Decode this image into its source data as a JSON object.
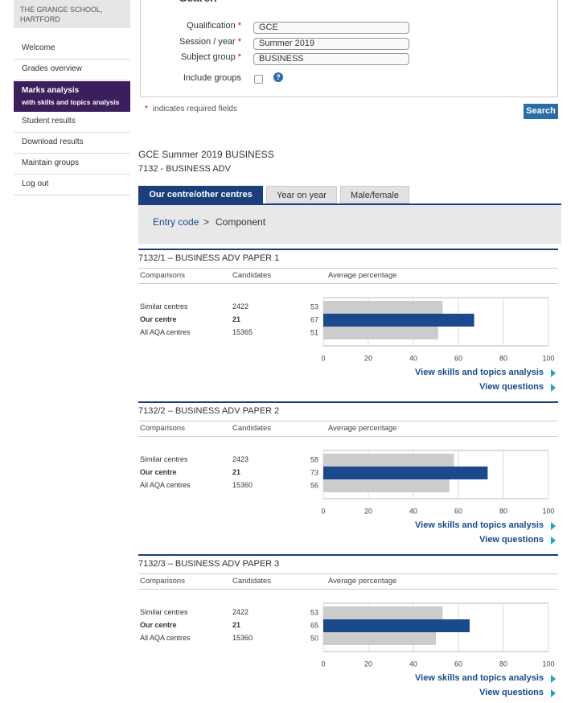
{
  "sidebar": {
    "school": "THE GRANGE SCHOOL, HARTFORD",
    "nav": [
      {
        "label": "Welcome"
      },
      {
        "label": "Grades overview"
      },
      {
        "label": "Marks analysis",
        "sublabel": "with skills and topics analysis"
      },
      {
        "label": "Student results"
      },
      {
        "label": "Download results"
      },
      {
        "label": "Maintain groups"
      },
      {
        "label": "Log out"
      }
    ]
  },
  "form": {
    "heading": "Search",
    "required_mark": "*",
    "fields": [
      {
        "label": "Qualification",
        "value": "GCE"
      },
      {
        "label": "Session / year",
        "value": "Summer 2019"
      },
      {
        "label": "Subject group",
        "value": "BUSINESS"
      }
    ],
    "checkbox_label": "Include groups",
    "help": "?",
    "required_note": "indicates required fields",
    "button": "Search"
  },
  "heading": {
    "title": "GCE Summer 2019 BUSINESS",
    "subtitle": "7132 - BUSINESS ADV"
  },
  "tabs": [
    "Our centre/other centres",
    "Year on year",
    "Male/female"
  ],
  "breadcrumb": [
    "Entry code",
    ">",
    "Component"
  ],
  "table_headers": [
    "Comparisons",
    "Candidates",
    "Average percentage"
  ],
  "links": [
    "View skills and topics analysis",
    "View questions"
  ],
  "components": [
    {
      "title": "7132/1 – BUSINESS ADV PAPER 1",
      "rows": [
        {
          "name": "Similar centres",
          "candidates": 2422
        },
        {
          "name": "Our centre",
          "candidates": 21
        },
        {
          "name": "All AQA centres",
          "candidates": 15365
        }
      ],
      "chart": {
        "type": "bar",
        "values": [
          53,
          67,
          51
        ],
        "colors": [
          "#cccccc",
          "#1a4a8c",
          "#cccccc"
        ],
        "xlim": [
          0,
          100
        ],
        "xticks": [
          0,
          20,
          40,
          60,
          80,
          100
        ],
        "grid": true
      }
    },
    {
      "title": "7132/2 – BUSINESS ADV PAPER 2",
      "rows": [
        {
          "name": "Similar centres",
          "candidates": 2423
        },
        {
          "name": "Our centre",
          "candidates": 21
        },
        {
          "name": "All AQA centres",
          "candidates": 15360
        }
      ],
      "chart": {
        "type": "bar",
        "values": [
          58,
          73,
          56
        ],
        "colors": [
          "#cccccc",
          "#1a4a8c",
          "#cccccc"
        ],
        "xlim": [
          0,
          100
        ],
        "xticks": [
          0,
          20,
          40,
          60,
          80,
          100
        ],
        "grid": true
      }
    },
    {
      "title": "7132/3 – BUSINESS ADV PAPER 3",
      "rows": [
        {
          "name": "Similar centres",
          "candidates": 2422
        },
        {
          "name": "Our centre",
          "candidates": 21
        },
        {
          "name": "All AQA centres",
          "candidates": 15360
        }
      ],
      "chart": {
        "type": "bar",
        "values": [
          53,
          65,
          50
        ],
        "colors": [
          "#cccccc",
          "#1a4a8c",
          "#cccccc"
        ],
        "xlim": [
          0,
          100
        ],
        "xticks": [
          0,
          20,
          40,
          60,
          80,
          100
        ],
        "grid": true
      }
    }
  ]
}
